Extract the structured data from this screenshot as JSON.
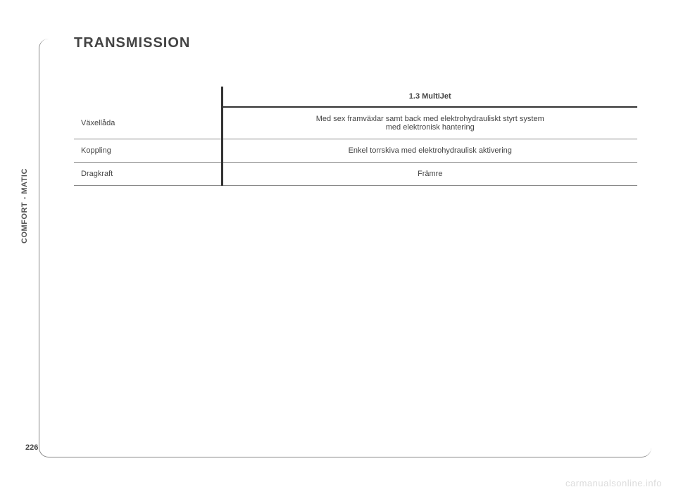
{
  "side_tab": "COMFORT - MATIC",
  "page_number": "226",
  "heading": "TRANSMISSION",
  "table": {
    "header": "1.3 MultiJet",
    "rows": [
      {
        "label": "Växellåda",
        "value": "Med sex framväxlar samt back med elektrohydrauliskt styrt system\nmed elektronisk hantering"
      },
      {
        "label": "Koppling",
        "value": "Enkel torrskiva med elektrohydraulisk aktivering"
      },
      {
        "label": "Dragkraft",
        "value": "Främre"
      }
    ]
  },
  "watermark": "carmanualsonline.info",
  "colors": {
    "text": "#444444",
    "border_heavy": "#333333",
    "border_light": "#888888",
    "watermark": "#dcdcdc",
    "background": "#ffffff"
  }
}
